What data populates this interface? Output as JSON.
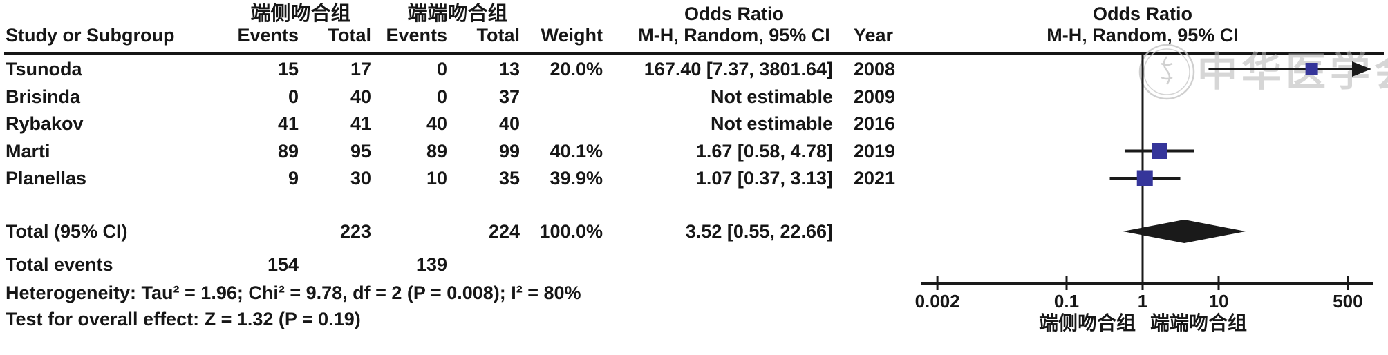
{
  "table": {
    "headers": {
      "study": "Study or Subgroup",
      "group1": "端侧吻合组",
      "group2": "端端吻合组",
      "events": "Events",
      "total": "Total",
      "weight": "Weight",
      "or_title": "Odds Ratio",
      "or_subtitle": "M-H, Random, 95% CI",
      "year": "Year"
    },
    "studies": [
      {
        "name": "Tsunoda",
        "events1": "15",
        "total1": "17",
        "events2": "0",
        "total2": "13",
        "weight": "20.0%",
        "ci": "167.40 [7.37, 3801.64]",
        "year": "2008"
      },
      {
        "name": "Brisinda",
        "events1": "0",
        "total1": "40",
        "events2": "0",
        "total2": "37",
        "weight": "",
        "ci": "Not estimable",
        "year": "2009"
      },
      {
        "name": "Rybakov",
        "events1": "41",
        "total1": "41",
        "events2": "40",
        "total2": "40",
        "weight": "",
        "ci": "Not estimable",
        "year": "2016"
      },
      {
        "name": "Marti",
        "events1": "89",
        "total1": "95",
        "events2": "89",
        "total2": "99",
        "weight": "40.1%",
        "ci": "1.67 [0.58, 4.78]",
        "year": "2019"
      },
      {
        "name": "Planellas",
        "events1": "9",
        "total1": "30",
        "events2": "10",
        "total2": "35",
        "weight": "39.9%",
        "ci": "1.07 [0.37, 3.13]",
        "year": "2021"
      }
    ],
    "total_row": {
      "label": "Total (95% CI)",
      "total1": "223",
      "total2": "224",
      "weight": "100.0%",
      "ci": "3.52 [0.55, 22.66]"
    },
    "total_events": {
      "label": "Total events",
      "events1": "154",
      "events2": "139"
    },
    "heterogeneity": "Heterogeneity: Tau² = 1.96; Chi² = 9.78, df = 2 (P = 0.008); I² = 80%",
    "overall_effect": "Test for overall effect: Z = 1.32 (P = 0.19)"
  },
  "plot": {
    "title": "Odds Ratio",
    "subtitle": "M-H, Random, 95% CI",
    "favours_left": "端侧吻合组",
    "favours_right": "端端吻合组",
    "axis_labels": [
      "0.002",
      "0.1",
      "1",
      "10",
      "500"
    ],
    "marker_color": "#35359a",
    "line_color": "#1a1a1a"
  },
  "watermark": {
    "text": "中华医学会"
  },
  "chart_data": {
    "type": "scatter",
    "subtype": "forest-plot",
    "effect_measure": "Odds Ratio, M-H, Random, 95% CI",
    "x_scale": "log",
    "x_ticks": [
      0.002,
      0.1,
      1,
      10,
      500
    ],
    "xlim": [
      0.002,
      500
    ],
    "null_line": 1,
    "studies": [
      {
        "name": "Tsunoda",
        "year": 2008,
        "or": 167.4,
        "ci_low": 7.37,
        "ci_high": 3801.64,
        "weight_pct": 20.0,
        "not_estimable": false
      },
      {
        "name": "Brisinda",
        "year": 2009,
        "or": null,
        "ci_low": null,
        "ci_high": null,
        "weight_pct": null,
        "not_estimable": true
      },
      {
        "name": "Rybakov",
        "year": 2016,
        "or": null,
        "ci_low": null,
        "ci_high": null,
        "weight_pct": null,
        "not_estimable": true
      },
      {
        "name": "Marti",
        "year": 2019,
        "or": 1.67,
        "ci_low": 0.58,
        "ci_high": 4.78,
        "weight_pct": 40.1,
        "not_estimable": false
      },
      {
        "name": "Planellas",
        "year": 2021,
        "or": 1.07,
        "ci_low": 0.37,
        "ci_high": 3.13,
        "weight_pct": 39.9,
        "not_estimable": false
      }
    ],
    "pooled": {
      "or": 3.52,
      "ci_low": 0.55,
      "ci_high": 22.66,
      "weight_pct": 100.0
    },
    "group1_total": 223,
    "group2_total": 224,
    "group1_events": 154,
    "group2_events": 139,
    "heterogeneity": {
      "tau2": 1.96,
      "chi2": 9.78,
      "df": 2,
      "p": 0.008,
      "i2_pct": 80
    },
    "overall_effect": {
      "z": 1.32,
      "p": 0.19
    }
  }
}
